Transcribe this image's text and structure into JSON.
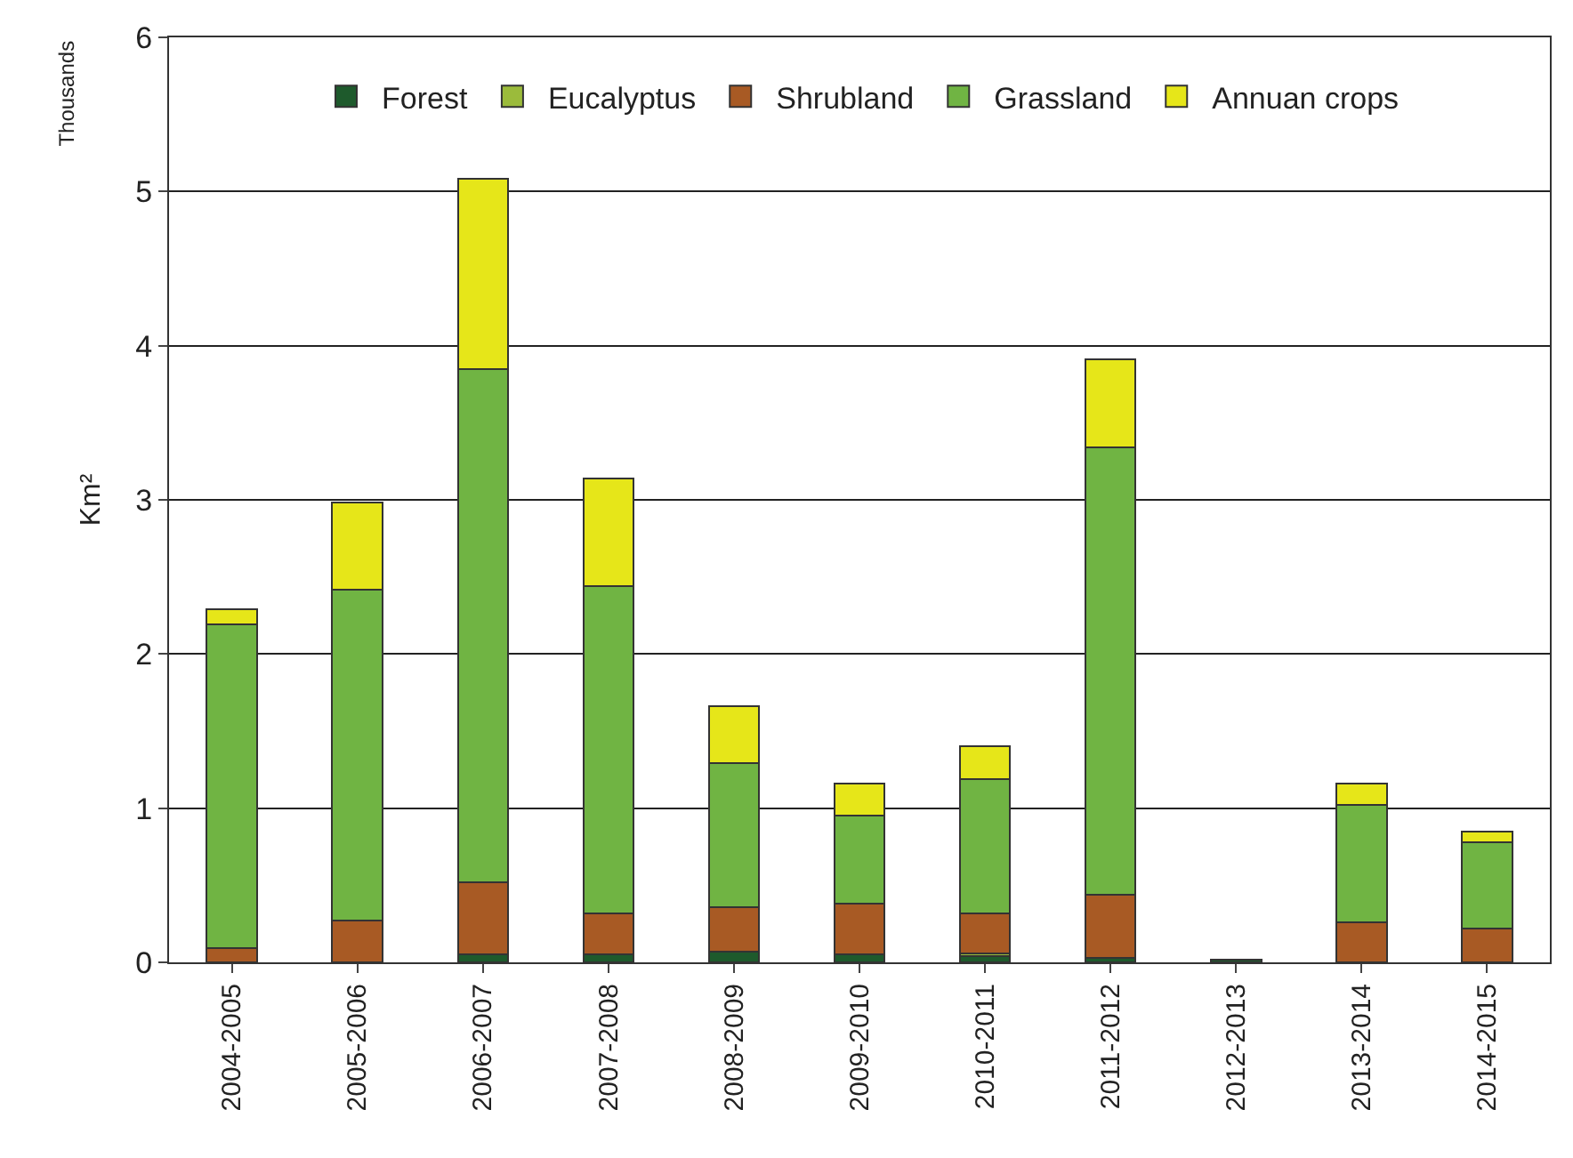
{
  "chart_data": {
    "type": "bar",
    "stacked": true,
    "ylabel": "Km²",
    "annotations": [
      "Thousands"
    ],
    "categories": [
      "2004-2005",
      "2005-2006",
      "2006-2007",
      "2007-2008",
      "2008-2009",
      "2009-2010",
      "2010-2011",
      "2011-2012",
      "2012-2013",
      "2013-2014",
      "2014-2015"
    ],
    "series": [
      {
        "name": "Forest",
        "color": "#1e5a2c",
        "values": [
          null,
          null,
          0.05,
          0.05,
          0.07,
          0.05,
          0.04,
          0.03,
          0.02,
          null,
          null
        ]
      },
      {
        "name": "Eucalyptus",
        "color": "#9bbb3b",
        "values": [
          null,
          null,
          null,
          null,
          null,
          null,
          0.02,
          null,
          null,
          null,
          null
        ]
      },
      {
        "name": "Shrubland",
        "color": "#a85a24",
        "values": [
          0.09,
          0.27,
          0.47,
          0.27,
          0.29,
          0.33,
          0.26,
          0.41,
          null,
          0.26,
          0.22
        ]
      },
      {
        "name": "Grassland",
        "color": "#70b443",
        "values": [
          2.1,
          2.15,
          3.33,
          2.12,
          0.93,
          0.57,
          0.87,
          2.9,
          null,
          0.76,
          0.56
        ]
      },
      {
        "name": "Annuan crops",
        "color": "#e6e619",
        "values": [
          0.1,
          0.56,
          1.23,
          0.7,
          0.37,
          0.21,
          0.21,
          0.57,
          null,
          0.14,
          0.07
        ]
      }
    ],
    "ylim": [
      0,
      6
    ],
    "yticks": [
      0,
      1,
      2,
      3,
      4,
      5,
      6
    ],
    "grid": "y",
    "legend": "top"
  }
}
